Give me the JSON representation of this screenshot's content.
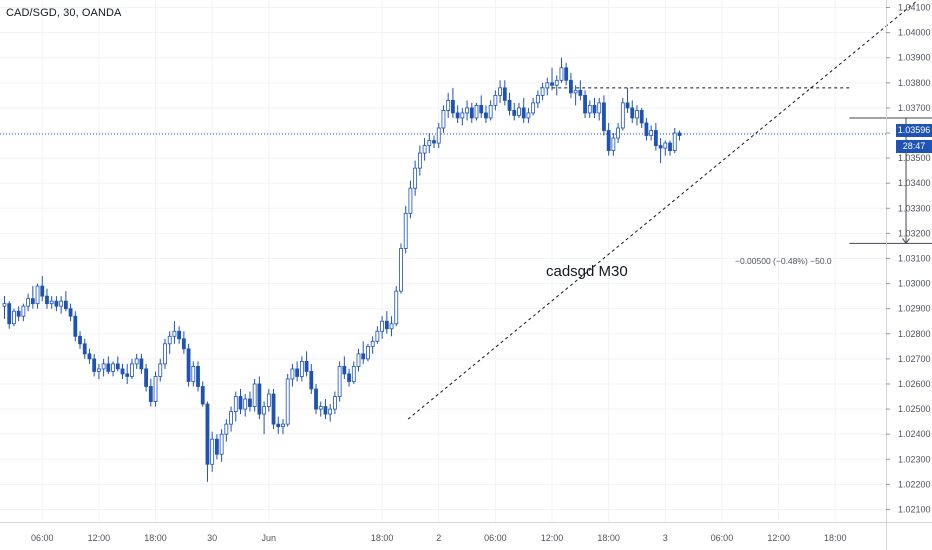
{
  "header": {
    "symbol": "CAD/SGD, 30, OANDA"
  },
  "annotation": "cadsgd M30",
  "measure": {
    "label": "−0.00500 (−0.48%) −50.0"
  },
  "last_price": "1.03596",
  "countdown": "28:47",
  "colors": {
    "up": "#ffffff",
    "down": "#1e53b5",
    "accent": "#1e53b5",
    "grid": "#f0f3fa",
    "text": "#50535e"
  },
  "chart_data": {
    "type": "candlestick",
    "y_ticks": [
      "1.04100",
      "1.04000",
      "1.03900",
      "1.03800",
      "1.03700",
      "1.03600",
      "1.03500",
      "1.03400",
      "1.03300",
      "1.03200",
      "1.03100",
      "1.03000",
      "1.02900",
      "1.02800",
      "1.02700",
      "1.02600",
      "1.02500",
      "1.02400",
      "1.02300",
      "1.02200",
      "1.02100"
    ],
    "x_ticks": [
      {
        "label": "06:00",
        "idx": 8
      },
      {
        "label": "12:00",
        "idx": 20
      },
      {
        "label": "18:00",
        "idx": 32
      },
      {
        "label": "30",
        "idx": 44
      },
      {
        "label": "Jun",
        "idx": 56
      },
      {
        "label": "18:00",
        "idx": 80
      },
      {
        "label": "2",
        "idx": 92
      },
      {
        "label": "06:00",
        "idx": 104
      },
      {
        "label": "12:00",
        "idx": 116
      },
      {
        "label": "18:00",
        "idx": 128
      },
      {
        "label": "3",
        "idx": 140
      },
      {
        "label": "06:00",
        "idx": 152
      },
      {
        "label": "12:00",
        "idx": 164
      },
      {
        "label": "18:00",
        "idx": 176
      }
    ],
    "ylim": [
      1.0205,
      1.0413
    ],
    "last_price": 1.03596,
    "candles": [
      [
        1.0291,
        1.0295,
        1.0286,
        1.0292
      ],
      [
        1.0292,
        1.0293,
        1.0282,
        1.0284
      ],
      [
        1.0284,
        1.029,
        1.0283,
        1.0289
      ],
      [
        1.0289,
        1.0291,
        1.0285,
        1.0287
      ],
      [
        1.0287,
        1.0292,
        1.0285,
        1.0291
      ],
      [
        1.0291,
        1.0296,
        1.0289,
        1.0294
      ],
      [
        1.0294,
        1.0299,
        1.029,
        1.0292
      ],
      [
        1.0292,
        1.03,
        1.029,
        1.0299
      ],
      [
        1.0299,
        1.0303,
        1.0293,
        1.0295
      ],
      [
        1.0295,
        1.0298,
        1.029,
        1.0292
      ],
      [
        1.0292,
        1.0295,
        1.029,
        1.0293
      ],
      [
        1.0293,
        1.0295,
        1.0289,
        1.0291
      ],
      [
        1.0291,
        1.0295,
        1.0288,
        1.0293
      ],
      [
        1.0293,
        1.0297,
        1.0289,
        1.029
      ],
      [
        1.029,
        1.0292,
        1.0285,
        1.0287
      ],
      [
        1.0287,
        1.0289,
        1.0277,
        1.0279
      ],
      [
        1.0279,
        1.0281,
        1.0274,
        1.0276
      ],
      [
        1.0276,
        1.0278,
        1.027,
        1.0272
      ],
      [
        1.0272,
        1.0274,
        1.0268,
        1.027
      ],
      [
        1.027,
        1.0272,
        1.0263,
        1.0265
      ],
      [
        1.0265,
        1.0268,
        1.0262,
        1.0266
      ],
      [
        1.0266,
        1.027,
        1.0263,
        1.0268
      ],
      [
        1.0268,
        1.0271,
        1.0264,
        1.0265
      ],
      [
        1.0265,
        1.0269,
        1.0263,
        1.0268
      ],
      [
        1.0268,
        1.0271,
        1.0265,
        1.0266
      ],
      [
        1.0266,
        1.0268,
        1.0262,
        1.0264
      ],
      [
        1.0264,
        1.0268,
        1.026,
        1.0263
      ],
      [
        1.0263,
        1.027,
        1.0262,
        1.0268
      ],
      [
        1.0268,
        1.0272,
        1.0266,
        1.027
      ],
      [
        1.027,
        1.0272,
        1.0264,
        1.0266
      ],
      [
        1.0266,
        1.0268,
        1.0257,
        1.0259
      ],
      [
        1.0259,
        1.0262,
        1.0251,
        1.0253
      ],
      [
        1.0253,
        1.0265,
        1.0251,
        1.0263
      ],
      [
        1.0263,
        1.027,
        1.0261,
        1.0268
      ],
      [
        1.0268,
        1.0278,
        1.0266,
        1.0276
      ],
      [
        1.0276,
        1.0281,
        1.0272,
        1.0279
      ],
      [
        1.0279,
        1.0285,
        1.0276,
        1.0281
      ],
      [
        1.0281,
        1.0283,
        1.0276,
        1.0278
      ],
      [
        1.0278,
        1.0281,
        1.0272,
        1.0274
      ],
      [
        1.0274,
        1.0276,
        1.0259,
        1.0261
      ],
      [
        1.0261,
        1.0269,
        1.0259,
        1.0267
      ],
      [
        1.0267,
        1.0269,
        1.0257,
        1.0259
      ],
      [
        1.0259,
        1.0261,
        1.0251,
        1.0252
      ],
      [
        1.0252,
        1.0253,
        1.0221,
        1.0228
      ],
      [
        1.0228,
        1.0241,
        1.0225,
        1.0238
      ],
      [
        1.0238,
        1.024,
        1.023,
        1.0232
      ],
      [
        1.0232,
        1.0242,
        1.0229,
        1.024
      ],
      [
        1.024,
        1.0246,
        1.0237,
        1.0244
      ],
      [
        1.0244,
        1.0251,
        1.0241,
        1.0249
      ],
      [
        1.0249,
        1.0257,
        1.0245,
        1.0255
      ],
      [
        1.0255,
        1.0258,
        1.0248,
        1.025
      ],
      [
        1.025,
        1.0256,
        1.0247,
        1.0254
      ],
      [
        1.0254,
        1.0257,
        1.0249,
        1.0251
      ],
      [
        1.0251,
        1.0262,
        1.0249,
        1.026
      ],
      [
        1.026,
        1.0263,
        1.0246,
        1.0248
      ],
      [
        1.0248,
        1.0253,
        1.024,
        1.0251
      ],
      [
        1.0251,
        1.0258,
        1.0249,
        1.0256
      ],
      [
        1.0256,
        1.0258,
        1.0242,
        1.0244
      ],
      [
        1.0244,
        1.0247,
        1.024,
        1.0243
      ],
      [
        1.0243,
        1.0246,
        1.024,
        1.0244
      ],
      [
        1.0244,
        1.0264,
        1.0243,
        1.0262
      ],
      [
        1.0262,
        1.0268,
        1.0259,
        1.0266
      ],
      [
        1.0266,
        1.0269,
        1.0261,
        1.0263
      ],
      [
        1.0263,
        1.0271,
        1.0261,
        1.0269
      ],
      [
        1.0269,
        1.0273,
        1.0263,
        1.0265
      ],
      [
        1.0265,
        1.0268,
        1.0256,
        1.0258
      ],
      [
        1.0258,
        1.026,
        1.0248,
        1.025
      ],
      [
        1.025,
        1.0253,
        1.0247,
        1.0251
      ],
      [
        1.0251,
        1.0254,
        1.0246,
        1.0248
      ],
      [
        1.0248,
        1.0252,
        1.0245,
        1.025
      ],
      [
        1.025,
        1.0257,
        1.0248,
        1.0255
      ],
      [
        1.0255,
        1.0269,
        1.0253,
        1.0267
      ],
      [
        1.0267,
        1.0271,
        1.0262,
        1.0264
      ],
      [
        1.0264,
        1.0266,
        1.0259,
        1.0261
      ],
      [
        1.0261,
        1.0269,
        1.026,
        1.0267
      ],
      [
        1.0267,
        1.0274,
        1.0265,
        1.0272
      ],
      [
        1.0272,
        1.0277,
        1.0268,
        1.027
      ],
      [
        1.027,
        1.0276,
        1.0269,
        1.0275
      ],
      [
        1.0275,
        1.0279,
        1.0272,
        1.0277
      ],
      [
        1.0277,
        1.0283,
        1.0276,
        1.0281
      ],
      [
        1.0281,
        1.0287,
        1.0278,
        1.0285
      ],
      [
        1.0285,
        1.0289,
        1.028,
        1.0282
      ],
      [
        1.0282,
        1.0287,
        1.0279,
        1.0284
      ],
      [
        1.0284,
        1.0299,
        1.0283,
        1.0297
      ],
      [
        1.0297,
        1.0316,
        1.0296,
        1.0314
      ],
      [
        1.0314,
        1.0331,
        1.0312,
        1.0328
      ],
      [
        1.0328,
        1.0341,
        1.0326,
        1.0338
      ],
      [
        1.0338,
        1.0349,
        1.0335,
        1.0346
      ],
      [
        1.0346,
        1.0355,
        1.0343,
        1.0352
      ],
      [
        1.0352,
        1.0358,
        1.0349,
        1.0355
      ],
      [
        1.0355,
        1.036,
        1.0352,
        1.0357
      ],
      [
        1.0357,
        1.0359,
        1.0354,
        1.0356
      ],
      [
        1.0356,
        1.0364,
        1.0354,
        1.0362
      ],
      [
        1.0362,
        1.0371,
        1.036,
        1.0369
      ],
      [
        1.0369,
        1.0376,
        1.0366,
        1.0373
      ],
      [
        1.0373,
        1.0378,
        1.0366,
        1.0368
      ],
      [
        1.0368,
        1.0371,
        1.0364,
        1.0366
      ],
      [
        1.0366,
        1.037,
        1.0363,
        1.0368
      ],
      [
        1.0368,
        1.0373,
        1.0365,
        1.037
      ],
      [
        1.037,
        1.0372,
        1.0364,
        1.0366
      ],
      [
        1.0366,
        1.0372,
        1.0365,
        1.0371
      ],
      [
        1.0371,
        1.0375,
        1.0366,
        1.0368
      ],
      [
        1.0368,
        1.0371,
        1.0364,
        1.0366
      ],
      [
        1.0366,
        1.0373,
        1.0365,
        1.0371
      ],
      [
        1.0371,
        1.0377,
        1.0369,
        1.0375
      ],
      [
        1.0375,
        1.0381,
        1.0372,
        1.0378
      ],
      [
        1.0378,
        1.0381,
        1.0371,
        1.0373
      ],
      [
        1.0373,
        1.0376,
        1.0367,
        1.0369
      ],
      [
        1.0369,
        1.0372,
        1.0365,
        1.0367
      ],
      [
        1.0367,
        1.0372,
        1.0366,
        1.037
      ],
      [
        1.037,
        1.0374,
        1.0364,
        1.0366
      ],
      [
        1.0366,
        1.037,
        1.0364,
        1.0368
      ],
      [
        1.0368,
        1.0374,
        1.0367,
        1.0372
      ],
      [
        1.0372,
        1.0377,
        1.037,
        1.0375
      ],
      [
        1.0375,
        1.038,
        1.0373,
        1.0378
      ],
      [
        1.0378,
        1.0382,
        1.0375,
        1.038
      ],
      [
        1.038,
        1.0386,
        1.0377,
        1.0379
      ],
      [
        1.0379,
        1.0383,
        1.0375,
        1.0381
      ],
      [
        1.0381,
        1.039,
        1.038,
        1.0386
      ],
      [
        1.0386,
        1.0388,
        1.0379,
        1.0381
      ],
      [
        1.0381,
        1.0384,
        1.0374,
        1.0376
      ],
      [
        1.0376,
        1.0379,
        1.0371,
        1.0377
      ],
      [
        1.0377,
        1.0381,
        1.0373,
        1.0375
      ],
      [
        1.0375,
        1.0377,
        1.0366,
        1.0368
      ],
      [
        1.0368,
        1.0373,
        1.0366,
        1.0371
      ],
      [
        1.0371,
        1.0374,
        1.0366,
        1.0368
      ],
      [
        1.0368,
        1.0374,
        1.0365,
        1.0372
      ],
      [
        1.0372,
        1.0375,
        1.0359,
        1.0361
      ],
      [
        1.0361,
        1.0364,
        1.0351,
        1.0353
      ],
      [
        1.0353,
        1.036,
        1.0351,
        1.0358
      ],
      [
        1.0358,
        1.0364,
        1.0356,
        1.0362
      ],
      [
        1.0362,
        1.0374,
        1.0361,
        1.0372
      ],
      [
        1.0372,
        1.0378,
        1.0368,
        1.037
      ],
      [
        1.037,
        1.0373,
        1.0364,
        1.0366
      ],
      [
        1.0366,
        1.0371,
        1.0363,
        1.0369
      ],
      [
        1.0369,
        1.037,
        1.0362,
        1.0364
      ],
      [
        1.0364,
        1.0366,
        1.0357,
        1.0359
      ],
      [
        1.0359,
        1.0363,
        1.0357,
        1.0361
      ],
      [
        1.0361,
        1.0364,
        1.0353,
        1.0355
      ],
      [
        1.0355,
        1.0358,
        1.0348,
        1.0354
      ],
      [
        1.0354,
        1.0357,
        1.0351,
        1.0356
      ],
      [
        1.0356,
        1.0357,
        1.0351,
        1.0353
      ],
      [
        1.0353,
        1.0362,
        1.0352,
        1.036
      ],
      [
        1.036,
        1.0361,
        1.0357,
        1.0359
      ]
    ],
    "drawings": {
      "trendline": {
        "from": [
          85.5,
          1.0246
        ],
        "to": [
          200,
          1.0423
        ],
        "style": "dashed"
      },
      "resistance": {
        "from": [
          113.5,
          1.0378
        ],
        "to": [
          179,
          1.0378
        ],
        "style": "dashed"
      },
      "horizontal_line": {
        "price": 1.03596,
        "style": "dotted"
      },
      "measure": {
        "x": 191,
        "from": 1.0366,
        "to": 1.0316,
        "bracket_left": 179,
        "bracket_right": 205
      }
    }
  }
}
